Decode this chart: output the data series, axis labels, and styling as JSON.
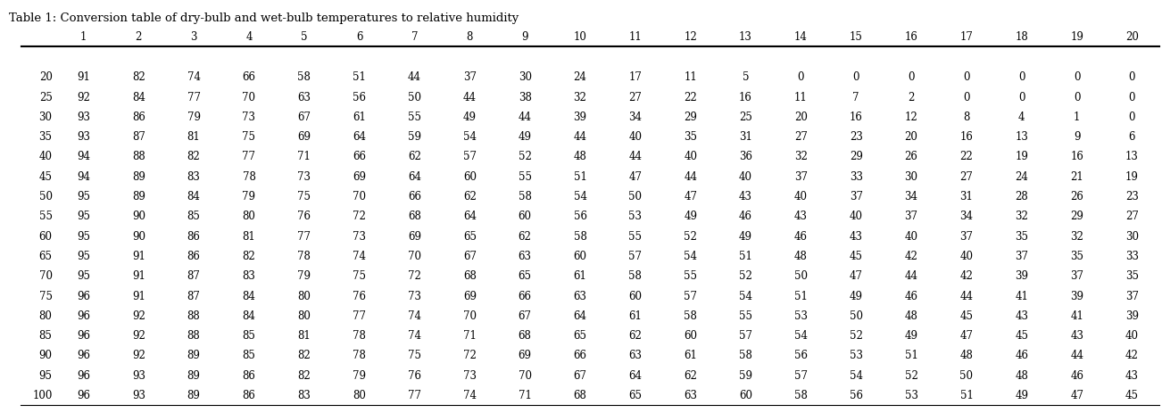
{
  "title": "Table 1: Conversion table of dry-bulb and wet-bulb temperatures to relative humidity",
  "col_headers": [
    "",
    "1",
    "2",
    "3",
    "4",
    "5",
    "6",
    "7",
    "8",
    "9",
    "10",
    "11",
    "12",
    "13",
    "14",
    "15",
    "16",
    "17",
    "18",
    "19",
    "20"
  ],
  "rows": [
    [
      20,
      91,
      82,
      74,
      66,
      58,
      51,
      44,
      37,
      30,
      24,
      17,
      11,
      5,
      0,
      0,
      0,
      0,
      0,
      0,
      0
    ],
    [
      25,
      92,
      84,
      77,
      70,
      63,
      56,
      50,
      44,
      38,
      32,
      27,
      22,
      16,
      11,
      7,
      2,
      0,
      0,
      0,
      0
    ],
    [
      30,
      93,
      86,
      79,
      73,
      67,
      61,
      55,
      49,
      44,
      39,
      34,
      29,
      25,
      20,
      16,
      12,
      8,
      4,
      1,
      0
    ],
    [
      35,
      93,
      87,
      81,
      75,
      69,
      64,
      59,
      54,
      49,
      44,
      40,
      35,
      31,
      27,
      23,
      20,
      16,
      13,
      9,
      6
    ],
    [
      40,
      94,
      88,
      82,
      77,
      71,
      66,
      62,
      57,
      52,
      48,
      44,
      40,
      36,
      32,
      29,
      26,
      22,
      19,
      16,
      13
    ],
    [
      45,
      94,
      89,
      83,
      78,
      73,
      69,
      64,
      60,
      55,
      51,
      47,
      44,
      40,
      37,
      33,
      30,
      27,
      24,
      21,
      19
    ],
    [
      50,
      95,
      89,
      84,
      79,
      75,
      70,
      66,
      62,
      58,
      54,
      50,
      47,
      43,
      40,
      37,
      34,
      31,
      28,
      26,
      23
    ],
    [
      55,
      95,
      90,
      85,
      80,
      76,
      72,
      68,
      64,
      60,
      56,
      53,
      49,
      46,
      43,
      40,
      37,
      34,
      32,
      29,
      27
    ],
    [
      60,
      95,
      90,
      86,
      81,
      77,
      73,
      69,
      65,
      62,
      58,
      55,
      52,
      49,
      46,
      43,
      40,
      37,
      35,
      32,
      30
    ],
    [
      65,
      95,
      91,
      86,
      82,
      78,
      74,
      70,
      67,
      63,
      60,
      57,
      54,
      51,
      48,
      45,
      42,
      40,
      37,
      35,
      33
    ],
    [
      70,
      95,
      91,
      87,
      83,
      79,
      75,
      72,
      68,
      65,
      61,
      58,
      55,
      52,
      50,
      47,
      44,
      42,
      39,
      37,
      35
    ],
    [
      75,
      96,
      91,
      87,
      84,
      80,
      76,
      73,
      69,
      66,
      63,
      60,
      57,
      54,
      51,
      49,
      46,
      44,
      41,
      39,
      37
    ],
    [
      80,
      96,
      92,
      88,
      84,
      80,
      77,
      74,
      70,
      67,
      64,
      61,
      58,
      55,
      53,
      50,
      48,
      45,
      43,
      41,
      39
    ],
    [
      85,
      96,
      92,
      88,
      85,
      81,
      78,
      74,
      71,
      68,
      65,
      62,
      60,
      57,
      54,
      52,
      49,
      47,
      45,
      43,
      40
    ],
    [
      90,
      96,
      92,
      89,
      85,
      82,
      78,
      75,
      72,
      69,
      66,
      63,
      61,
      58,
      56,
      53,
      51,
      48,
      46,
      44,
      42
    ],
    [
      95,
      96,
      93,
      89,
      86,
      82,
      79,
      76,
      73,
      70,
      67,
      64,
      62,
      59,
      57,
      54,
      52,
      50,
      48,
      46,
      43
    ],
    [
      100,
      96,
      93,
      89,
      86,
      83,
      80,
      77,
      74,
      71,
      68,
      65,
      63,
      60,
      58,
      56,
      53,
      51,
      49,
      47,
      45
    ]
  ],
  "font_size": 8.5,
  "title_font_size": 9.5,
  "bg_color": "#ffffff",
  "text_color": "#000000",
  "line_color": "#000000",
  "fig_width": 13.02,
  "fig_height": 4.64,
  "dpi": 100
}
